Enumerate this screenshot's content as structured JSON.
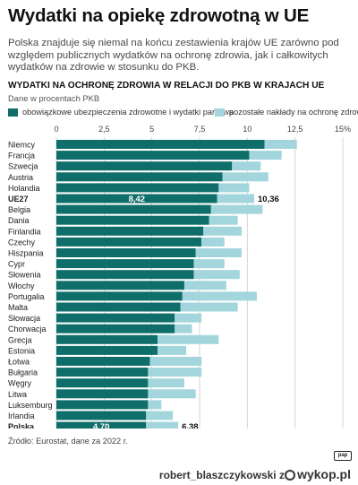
{
  "header": {
    "title": "Wydatki na opiekę zdrowotną w UE",
    "subtitle": "Polska znajduje się niemal na końcu zestawienia krajów UE zarówno pod względem publicznych wydatków na ochronę zdrowia, jak i całkowitych wydatków na zdrowie w stosunku do PKB."
  },
  "colors": {
    "primary": "#0f6e6a",
    "secondary": "#a3d6dc",
    "grid": "#d4d4d4"
  },
  "legend": {
    "primary_label": "obowiązkowe ubezpieczenia zdrowotne i wydatki państwa",
    "secondary_label": "pozostałe nakłady na ochronę zdrowia"
  },
  "chart_data": {
    "type": "bar",
    "orientation": "horizontal",
    "stacked": true,
    "title": "WYDATKI NA OCHRONĘ ZDROWIA W RELACJI DO PKB W KRAJACH UE",
    "subtitle": "Dane w procentach PKB",
    "x_ticks": [
      "0",
      "2,5",
      "5",
      "7,5",
      "10",
      "12,5",
      "15%"
    ],
    "xlim": [
      0,
      15
    ],
    "grid": true,
    "legend_position": "top",
    "categories": [
      "Niemcy",
      "Francja",
      "Szwecja",
      "Austria",
      "Holandia",
      "UE27",
      "Belgia",
      "Dania",
      "Finlandia",
      "Czechy",
      "Hiszpania",
      "Cypr",
      "Słowenia",
      "Włochy",
      "Portugalia",
      "Malta",
      "Słowacja",
      "Chorwacja",
      "Grecja",
      "Estonia",
      "Łotwa",
      "Bułgaria",
      "Węgry",
      "Litwa",
      "Luksemburg",
      "Irlandia",
      "Polska",
      "Rumunia"
    ],
    "highlighted": [
      "UE27",
      "Polska"
    ],
    "series": [
      {
        "name": "obowiązkowe ubezpieczenia zdrowotne i wydatki państwa",
        "values": [
          10.9,
          10.1,
          9.2,
          8.7,
          8.5,
          8.42,
          8.1,
          8.0,
          7.7,
          7.6,
          7.3,
          7.2,
          7.2,
          6.7,
          6.6,
          6.5,
          6.2,
          6.2,
          5.3,
          5.3,
          4.9,
          4.8,
          4.8,
          4.8,
          4.8,
          4.7,
          4.7,
          4.5
        ]
      },
      {
        "name": "pozostałe nakłady na ochronę zdrowia",
        "values": [
          1.7,
          1.7,
          1.5,
          2.4,
          1.6,
          1.94,
          2.7,
          1.5,
          2.0,
          1.2,
          2.4,
          1.6,
          2.4,
          2.2,
          3.9,
          3.0,
          1.4,
          0.9,
          3.2,
          1.5,
          2.7,
          2.8,
          1.9,
          2.5,
          0.7,
          1.4,
          1.68,
          1.1
        ]
      }
    ],
    "data_labels": [
      {
        "category": "UE27",
        "inside_label": "8,42",
        "total_label": "10,36"
      },
      {
        "category": "Polska",
        "inside_label": "4,70",
        "total_label": "6,38"
      }
    ]
  },
  "source": "Źródło: Eurostat, dane za 2022 r.",
  "logo_text": "pap",
  "footer": {
    "user": "robert_blaszczykowski",
    "separator": "z",
    "brand": "wykop.pl"
  }
}
